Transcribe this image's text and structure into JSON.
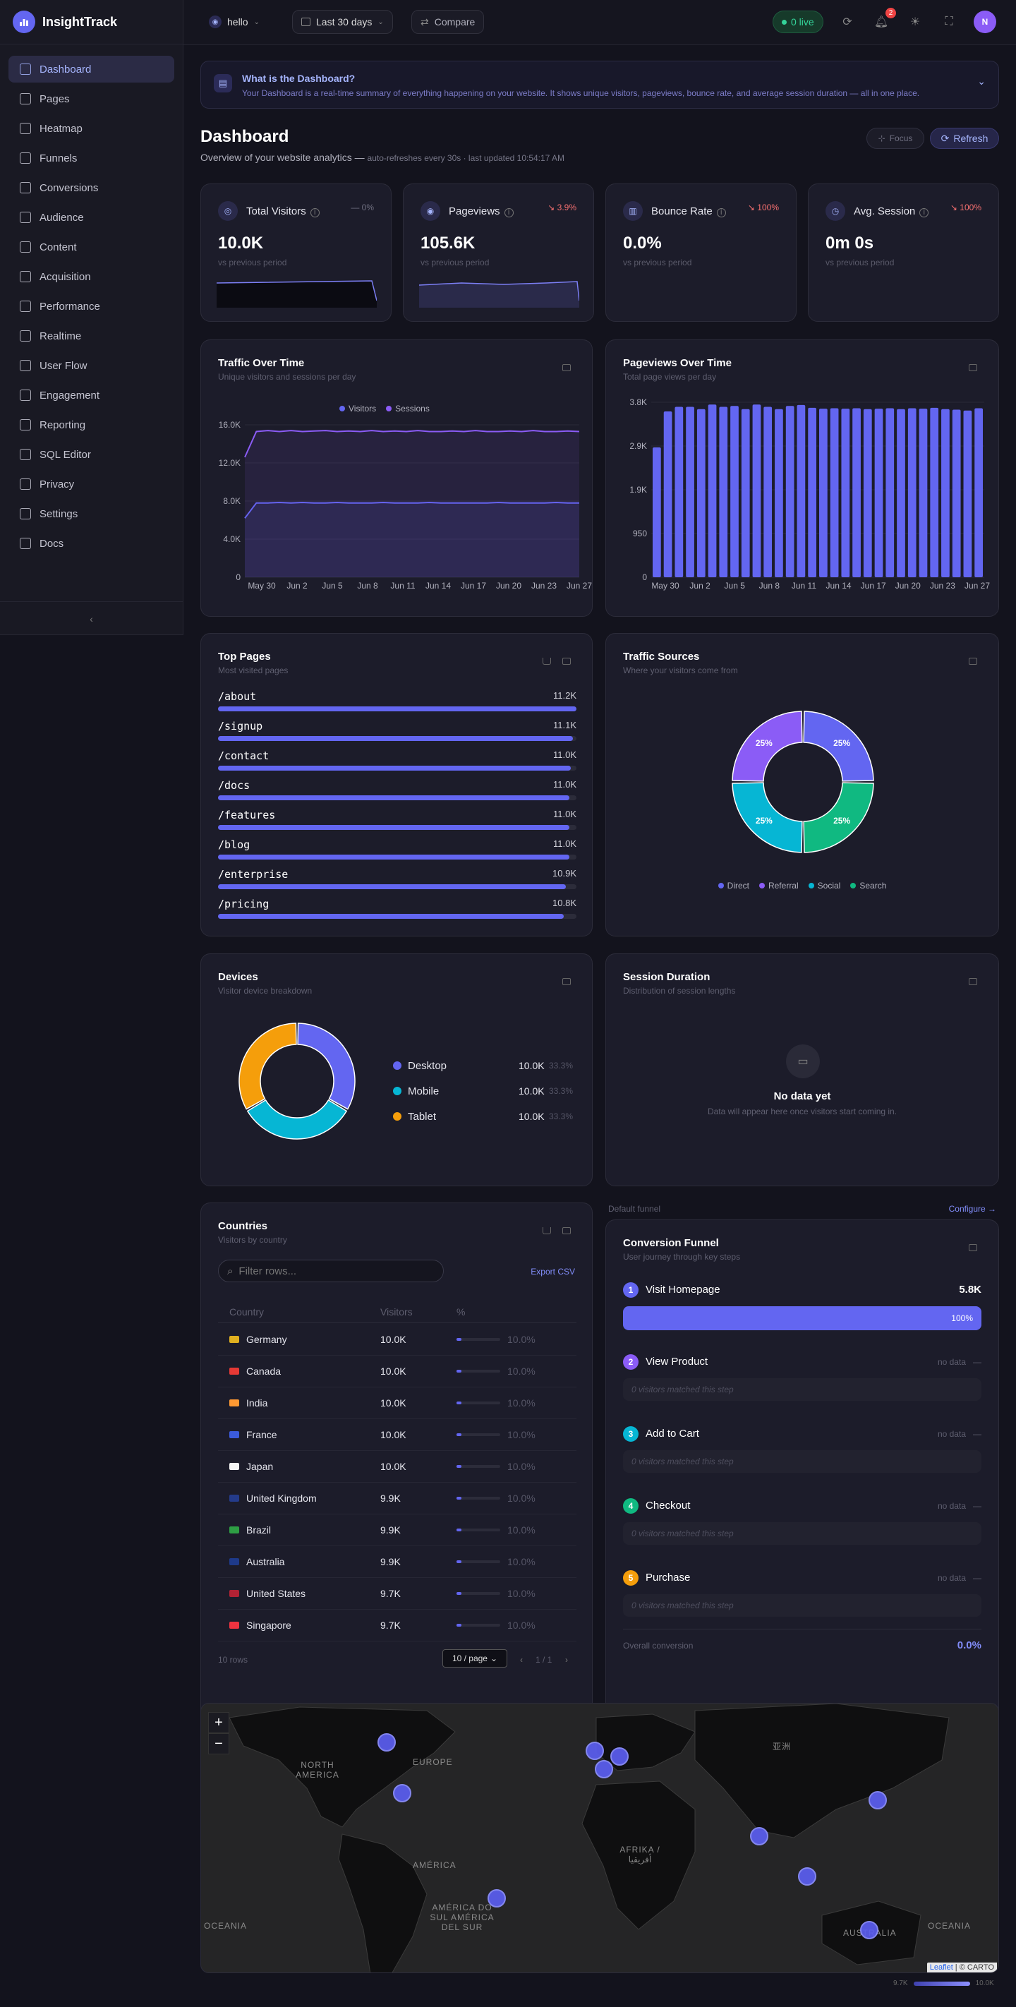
{
  "app": {
    "name": "InsightTrack"
  },
  "sidebar": {
    "items": [
      {
        "label": "Dashboard",
        "icon": "chart-bar-icon",
        "active": true
      },
      {
        "label": "Pages",
        "icon": "file-icon"
      },
      {
        "label": "Heatmap",
        "icon": "map-icon"
      },
      {
        "label": "Funnels",
        "icon": "layers-icon"
      },
      {
        "label": "Conversions",
        "icon": "target-icon"
      },
      {
        "label": "Audience",
        "icon": "users-icon"
      },
      {
        "label": "Content",
        "icon": "book-icon"
      },
      {
        "label": "Acquisition",
        "icon": "megaphone-icon"
      },
      {
        "label": "Performance",
        "icon": "gauge-icon"
      },
      {
        "label": "Realtime",
        "icon": "activity-icon"
      },
      {
        "label": "User Flow",
        "icon": "git-branch-icon"
      },
      {
        "label": "Engagement",
        "icon": "sparkles-icon"
      },
      {
        "label": "Reporting",
        "icon": "grid-icon"
      },
      {
        "label": "SQL Editor",
        "icon": "terminal-icon"
      },
      {
        "label": "Privacy",
        "icon": "shield-icon"
      },
      {
        "label": "Settings",
        "icon": "gear-icon"
      },
      {
        "label": "Docs",
        "icon": "book-open-icon"
      }
    ],
    "collapse": "‹"
  },
  "topbar": {
    "site": "hello",
    "range": "Last 30 days",
    "compare": "Compare",
    "live": "0 live",
    "notifications": "2",
    "avatar": "N"
  },
  "info": {
    "title": "What is the Dashboard?",
    "text": "Your Dashboard is a real-time summary of everything happening on your website. It shows unique visitors, pageviews, bounce rate, and average session duration — all in one place."
  },
  "header": {
    "title": "Dashboard",
    "subtitle": "Overview of your website analytics —",
    "meta": "auto-refreshes every 30s · last updated 10:54:17 AM",
    "focus": "Focus",
    "refresh": "Refresh"
  },
  "kpis": [
    {
      "label": "Total Visitors",
      "delta": "— 0%",
      "value": "10.0K",
      "compare": "vs previous period",
      "delta_color": "#6f6f80"
    },
    {
      "label": "Pageviews",
      "delta": "↘ 3.9%",
      "value": "105.6K",
      "compare": "vs previous period",
      "delta_color": "#f87171"
    },
    {
      "label": "Bounce Rate",
      "delta": "↘ 100%",
      "value": "0.0%",
      "compare": "vs previous period",
      "delta_color": "#f87171"
    },
    {
      "label": "Avg. Session",
      "delta": "↘ 100%",
      "value": "0m 0s",
      "compare": "vs previous period",
      "delta_color": "#f87171"
    }
  ],
  "traffic": {
    "title": "Traffic Over Time",
    "subtitle": "Unique visitors and sessions per day"
  },
  "pageviews_chart": {
    "title": "Pageviews Over Time",
    "subtitle": "Total page views per day"
  },
  "chart_data": [
    {
      "type": "line",
      "legend": [
        "Visitors",
        "Sessions"
      ],
      "y_ticks": [
        "0",
        "4.0K",
        "8.0K",
        "12.0K",
        "16.0K"
      ],
      "ylim": [
        0,
        16000
      ],
      "x_ticks": [
        "May 30",
        "Jun 2",
        "Jun 5",
        "Jun 8",
        "Jun 11",
        "Jun 14",
        "Jun 17",
        "Jun 20",
        "Jun 23",
        "Jun 27"
      ],
      "series": [
        {
          "name": "Visitors",
          "color": "#6366f1",
          "values": [
            6200,
            7800,
            7800,
            7850,
            7800,
            7850,
            7800,
            7800,
            7850,
            7800,
            7800,
            7800,
            7850,
            7800,
            7800,
            7800,
            7850,
            7800,
            7800,
            7800,
            7800,
            7800,
            7850,
            7800,
            7800,
            7800,
            7800,
            7850,
            7800,
            7800
          ]
        },
        {
          "name": "Sessions",
          "color": "#8b5cf6",
          "values": [
            12600,
            15300,
            15400,
            15300,
            15400,
            15300,
            15350,
            15400,
            15300,
            15350,
            15300,
            15400,
            15300,
            15350,
            15300,
            15400,
            15300,
            15300,
            15350,
            15300,
            15400,
            15300,
            15300,
            15350,
            15300,
            15400,
            15300,
            15300,
            15350,
            15300
          ]
        }
      ]
    },
    {
      "type": "bar",
      "y_ticks": [
        "0",
        "950",
        "1.9K",
        "2.9K",
        "3.8K"
      ],
      "ylim": [
        0,
        3800
      ],
      "x_ticks": [
        "May 30",
        "Jun 2",
        "Jun 5",
        "Jun 8",
        "Jun 11",
        "Jun 14",
        "Jun 17",
        "Jun 20",
        "Jun 23",
        "Jun 27"
      ],
      "values": [
        2820,
        3600,
        3700,
        3700,
        3650,
        3750,
        3700,
        3720,
        3650,
        3750,
        3700,
        3650,
        3720,
        3740,
        3680,
        3660,
        3670,
        3660,
        3670,
        3650,
        3660,
        3670,
        3650,
        3670,
        3660,
        3680,
        3650,
        3640,
        3620,
        3670
      ]
    },
    {
      "type": "pie",
      "labels": [
        "Direct",
        "Referral",
        "Social",
        "Search"
      ],
      "values": [
        25,
        25,
        25,
        25
      ],
      "colors": [
        "#6366f1",
        "#8b5cf6",
        "#06b6d4",
        "#10b981"
      ]
    },
    {
      "type": "pie",
      "labels": [
        "Desktop",
        "Mobile",
        "Tablet"
      ],
      "values": [
        33.3,
        33.3,
        33.3
      ],
      "colors": [
        "#6366f1",
        "#06b6d4",
        "#f59e0b"
      ]
    }
  ],
  "top_pages": {
    "title": "Top Pages",
    "subtitle": "Most visited pages",
    "rows": [
      {
        "path": "/about",
        "count": "11.2K",
        "pct": 100
      },
      {
        "path": "/signup",
        "count": "11.1K",
        "pct": 99
      },
      {
        "path": "/contact",
        "count": "11.0K",
        "pct": 98.5
      },
      {
        "path": "/docs",
        "count": "11.0K",
        "pct": 98
      },
      {
        "path": "/features",
        "count": "11.0K",
        "pct": 98
      },
      {
        "path": "/blog",
        "count": "11.0K",
        "pct": 98
      },
      {
        "path": "/enterprise",
        "count": "10.9K",
        "pct": 97
      },
      {
        "path": "/pricing",
        "count": "10.8K",
        "pct": 96.5
      }
    ]
  },
  "sources": {
    "title": "Traffic Sources",
    "subtitle": "Where your visitors come from",
    "slice_label": "25%"
  },
  "devices": {
    "title": "Devices",
    "subtitle": "Visitor device breakdown",
    "rows": [
      {
        "name": "Desktop",
        "value": "10.0K",
        "pct": "33.3%"
      },
      {
        "name": "Mobile",
        "value": "10.0K",
        "pct": "33.3%"
      },
      {
        "name": "Tablet",
        "value": "10.0K",
        "pct": "33.3%"
      }
    ]
  },
  "session": {
    "title": "Session Duration",
    "subtitle": "Distribution of session lengths",
    "empty_title": "No data yet",
    "empty_text": "Data will appear here once visitors start coming in."
  },
  "countries": {
    "title": "Countries",
    "subtitle": "Visitors by country",
    "filter_placeholder": "Filter rows...",
    "export": "Export CSV",
    "headers": [
      "Country",
      "Visitors",
      "%"
    ],
    "rows": [
      {
        "name": "Germany",
        "visitors": "10.0K",
        "pct": "10.0%",
        "flag": "#e0b020"
      },
      {
        "name": "Canada",
        "visitors": "10.0K",
        "pct": "10.0%",
        "flag": "#e53935"
      },
      {
        "name": "India",
        "visitors": "10.0K",
        "pct": "10.0%",
        "flag": "#ff9933"
      },
      {
        "name": "France",
        "visitors": "10.0K",
        "pct": "10.0%",
        "flag": "#3b5bdb"
      },
      {
        "name": "Japan",
        "visitors": "10.0K",
        "pct": "10.0%",
        "flag": "#f5f5f5"
      },
      {
        "name": "United Kingdom",
        "visitors": "9.9K",
        "pct": "10.0%",
        "flag": "#243b8a"
      },
      {
        "name": "Brazil",
        "visitors": "9.9K",
        "pct": "10.0%",
        "flag": "#2e9e44"
      },
      {
        "name": "Australia",
        "visitors": "9.9K",
        "pct": "10.0%",
        "flag": "#1e3a8a"
      },
      {
        "name": "United States",
        "visitors": "9.7K",
        "pct": "10.0%",
        "flag": "#b22234"
      },
      {
        "name": "Singapore",
        "visitors": "9.7K",
        "pct": "10.0%",
        "flag": "#ef3340"
      }
    ],
    "row_count": "10 rows",
    "page_size": "10 / page",
    "page": "1 / 1"
  },
  "funnel": {
    "label": "Default funnel",
    "configure": "Configure →",
    "title": "Conversion Funnel",
    "subtitle": "User journey through key steps",
    "steps": [
      {
        "num": "1",
        "name": "Visit Homepage",
        "value": "5.8K",
        "pct": "100%",
        "color": "#6366f1"
      },
      {
        "num": "2",
        "name": "View Product",
        "nodata": "no data",
        "empty": "0 visitors matched this step",
        "color": "#8b5cf6"
      },
      {
        "num": "3",
        "name": "Add to Cart",
        "nodata": "no data",
        "empty": "0 visitors matched this step",
        "color": "#06b6d4"
      },
      {
        "num": "4",
        "name": "Checkout",
        "nodata": "no data",
        "empty": "0 visitors matched this step",
        "color": "#10b981"
      },
      {
        "num": "5",
        "name": "Purchase",
        "nodata": "no data",
        "empty": "0 visitors matched this step",
        "color": "#f59e0b"
      }
    ],
    "overall_label": "Overall conversion",
    "overall_value": "0.0%"
  },
  "map": {
    "zoom_in": "+",
    "zoom_out": "−",
    "labels": {
      "north_america": "NORTH AMERICA",
      "america": "AMÉRICA",
      "south_america": "AMÉRICA DO SUL AMÉRICA DEL SUR",
      "europe": "EUROPE",
      "africa": "AFRIKA / أفريقيا",
      "oceania_left": "OCEANIA",
      "oceania_right": "OCEANIA",
      "australia": "AUSTRALIA",
      "asia": "亚洲"
    },
    "attribution_leaflet": "Leaflet",
    "attribution_carto": "© CARTO",
    "scale_min": "9.7K",
    "scale_max": "10.0K"
  }
}
